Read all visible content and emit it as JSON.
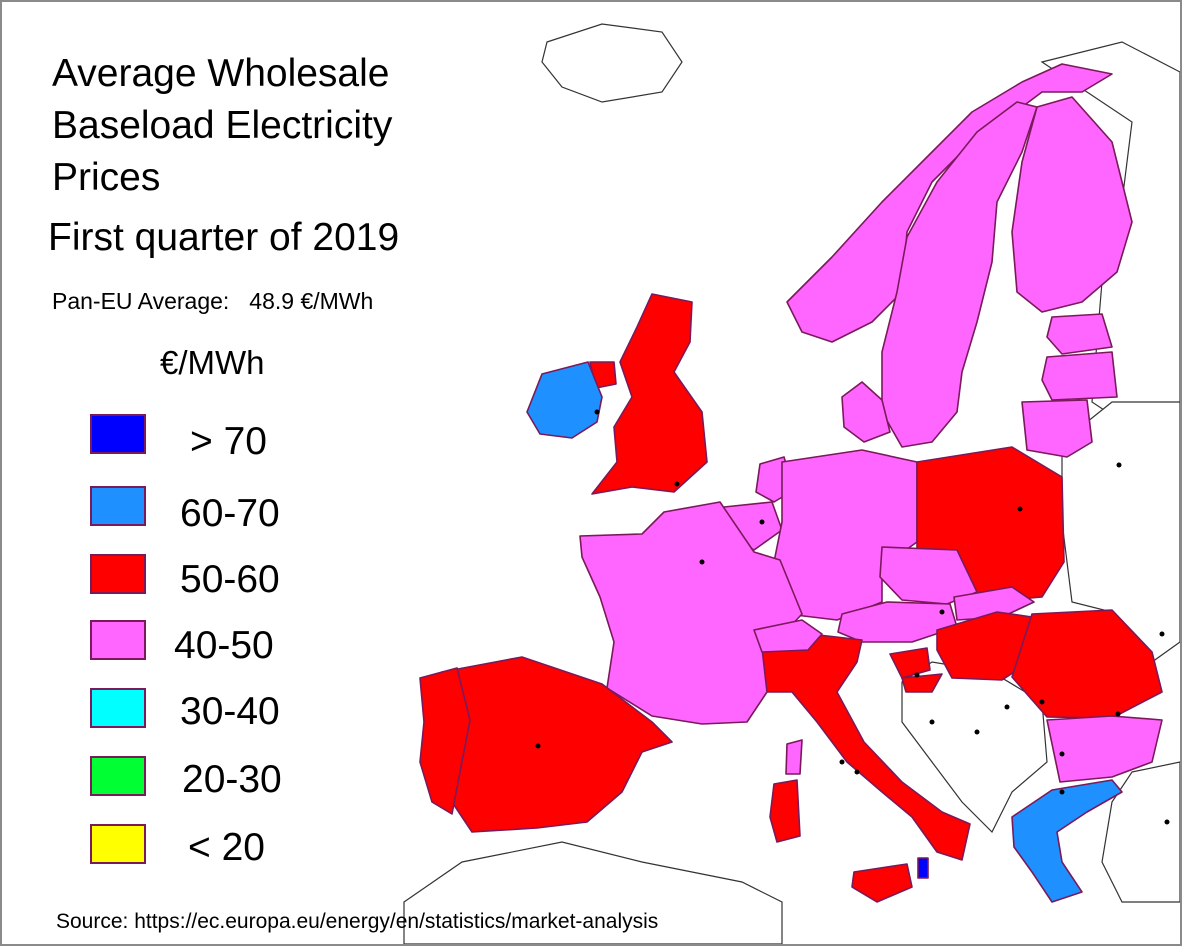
{
  "title_lines": [
    "Average Wholesale",
    "Baseload Electricity",
    "Prices"
  ],
  "subtitle": "First quarter of 2019",
  "pan_eu_average": {
    "label": "Pan-EU Average:",
    "value": "48.9 €/MWh"
  },
  "unit_label": "€/MWh",
  "legend": [
    {
      "label": "> 70",
      "color": "#0000ff"
    },
    {
      "label": "60-70",
      "color": "#1e90ff"
    },
    {
      "label": "50-60",
      "color": "#ff0000"
    },
    {
      "label": "40-50",
      "color": "#ff66ff"
    },
    {
      "label": "30-40",
      "color": "#00ffff"
    },
    {
      "label": "20-30",
      "color": "#00ff33"
    },
    {
      "label": "< 20",
      "color": "#ffff00"
    }
  ],
  "source": "Source: https://ec.europa.eu/energy/en/statistics/market-analysis",
  "colors": {
    "border": "#7a1a5a",
    "non_eu_fill": "#ffffff",
    "coast_stroke": "#222222"
  },
  "regions": [
    {
      "name": "norway",
      "category": "40-50"
    },
    {
      "name": "sweden",
      "category": "40-50"
    },
    {
      "name": "finland",
      "category": "40-50"
    },
    {
      "name": "estonia",
      "category": "40-50"
    },
    {
      "name": "latvia",
      "category": "40-50"
    },
    {
      "name": "lithuania",
      "category": "40-50"
    },
    {
      "name": "denmark",
      "category": "40-50"
    },
    {
      "name": "great-britain",
      "category": "50-60"
    },
    {
      "name": "northern-ireland",
      "category": "50-60"
    },
    {
      "name": "ireland",
      "category": "60-70"
    },
    {
      "name": "netherlands",
      "category": "40-50"
    },
    {
      "name": "belgium",
      "category": "40-50"
    },
    {
      "name": "germany",
      "category": "40-50"
    },
    {
      "name": "poland",
      "category": "50-60"
    },
    {
      "name": "czechia",
      "category": "40-50"
    },
    {
      "name": "slovakia",
      "category": "40-50"
    },
    {
      "name": "austria",
      "category": "40-50"
    },
    {
      "name": "hungary",
      "category": "50-60"
    },
    {
      "name": "romania",
      "category": "50-60"
    },
    {
      "name": "bulgaria",
      "category": "40-50"
    },
    {
      "name": "greece",
      "category": "60-70"
    },
    {
      "name": "slovenia",
      "category": "50-60"
    },
    {
      "name": "croatia",
      "category": "50-60"
    },
    {
      "name": "italy",
      "category": "50-60"
    },
    {
      "name": "sicily",
      "category": "50-60"
    },
    {
      "name": "sardinia",
      "category": "50-60"
    },
    {
      "name": "corsica",
      "category": "40-50"
    },
    {
      "name": "france",
      "category": "40-50"
    },
    {
      "name": "switzerland",
      "category": "40-50"
    },
    {
      "name": "spain",
      "category": "50-60"
    },
    {
      "name": "portugal",
      "category": "50-60"
    },
    {
      "name": "malta",
      "category": "> 70"
    }
  ]
}
